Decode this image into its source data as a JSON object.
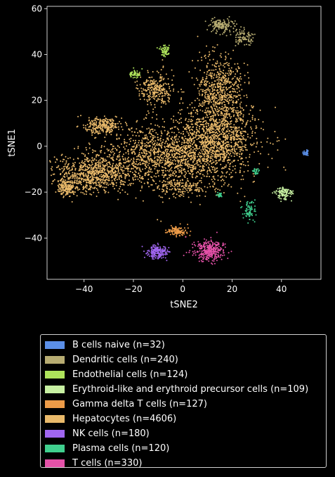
{
  "chart_data": {
    "type": "scatter",
    "title": "",
    "xlabel": "tSNE2",
    "ylabel": "tSNE1",
    "xlim": [
      -55,
      56
    ],
    "ylim": [
      -58,
      61
    ],
    "xticks": [
      -40,
      -20,
      0,
      20,
      40
    ],
    "yticks": [
      -40,
      -20,
      0,
      20,
      40,
      60
    ],
    "xtick_labels": [
      "−40",
      "−20",
      "0",
      "20",
      "40"
    ],
    "ytick_labels": [
      "−40",
      "−20",
      "0",
      "20",
      "40",
      "60"
    ],
    "grid": false,
    "legend_position": "below",
    "series": [
      {
        "name": "B cells naive (n=32)",
        "color": "#5b8fe8",
        "n": 32,
        "clusters": [
          {
            "x": 50,
            "y": -3,
            "sx": 0.6,
            "sy": 1.0,
            "w": 1
          }
        ]
      },
      {
        "name": "Dendritic cells (n=240)",
        "color": "#b7ac72",
        "n": 240,
        "clusters": [
          {
            "x": 17,
            "y": 52,
            "sx": 3.0,
            "sy": 1.8,
            "w": 0.45
          },
          {
            "x": 25,
            "y": 47,
            "sx": 2.0,
            "sy": 1.5,
            "w": 0.35
          },
          {
            "x": 14,
            "y": 53,
            "sx": 1.2,
            "sy": 1.0,
            "w": 0.2
          }
        ]
      },
      {
        "name": "Endothelial cells (n=124)",
        "color": "#aee35b",
        "n": 124,
        "clusters": [
          {
            "x": -7.5,
            "y": 41.5,
            "sx": 0.9,
            "sy": 1.2,
            "w": 0.55
          },
          {
            "x": -19.5,
            "y": 31.5,
            "sx": 1.2,
            "sy": 0.8,
            "w": 0.45
          }
        ]
      },
      {
        "name": "Erythroid-like and erythroid precursor cells (n=109)",
        "color": "#c7f0a2",
        "n": 109,
        "clusters": [
          {
            "x": 41,
            "y": -20.5,
            "sx": 1.8,
            "sy": 1.4,
            "w": 1
          }
        ]
      },
      {
        "name": "Gamma delta T cells (n=127)",
        "color": "#ec9b48",
        "n": 127,
        "clusters": [
          {
            "x": -2.5,
            "y": -37,
            "sx": 2.0,
            "sy": 1.0,
            "w": 1
          }
        ]
      },
      {
        "name": "Hepatocytes (n=4606)",
        "color": "#e9b96a",
        "n": 4606,
        "clusters": [
          {
            "x": -5,
            "y": -4,
            "sx": 14,
            "sy": 7,
            "w": 0.32
          },
          {
            "x": 14,
            "y": 4,
            "sx": 8,
            "sy": 7,
            "w": 0.2
          },
          {
            "x": -35,
            "y": -12,
            "sx": 8,
            "sy": 4,
            "w": 0.16
          },
          {
            "x": 15,
            "y": 24,
            "sx": 5,
            "sy": 8,
            "w": 0.14
          },
          {
            "x": -11,
            "y": 25,
            "sx": 3.5,
            "sy": 3.5,
            "w": 0.06
          },
          {
            "x": -33,
            "y": 9,
            "sx": 3.5,
            "sy": 1.8,
            "w": 0.05
          },
          {
            "x": -47,
            "y": -18,
            "sx": 2,
            "sy": 1.8,
            "w": 0.04
          },
          {
            "x": 0,
            "y": -18,
            "sx": 5,
            "sy": 2,
            "w": 0.03
          }
        ]
      },
      {
        "name": "NK cells (n=180)",
        "color": "#a066f0",
        "n": 180,
        "clusters": [
          {
            "x": -10.5,
            "y": -46,
            "sx": 2.2,
            "sy": 1.6,
            "w": 1
          }
        ]
      },
      {
        "name": "Plasma cells (n=120)",
        "color": "#40cf8e",
        "n": 120,
        "clusters": [
          {
            "x": 27,
            "y": -28,
            "sx": 1.2,
            "sy": 2.0,
            "w": 0.6
          },
          {
            "x": 29.5,
            "y": -11,
            "sx": 0.6,
            "sy": 0.8,
            "w": 0.2
          },
          {
            "x": 15,
            "y": -21,
            "sx": 0.6,
            "sy": 0.6,
            "w": 0.2
          }
        ]
      },
      {
        "name": "T cells (n=330)",
        "color": "#e451a8",
        "n": 330,
        "clusters": [
          {
            "x": 11,
            "y": -45.5,
            "sx": 3.2,
            "sy": 2.2,
            "w": 1
          }
        ]
      }
    ]
  }
}
